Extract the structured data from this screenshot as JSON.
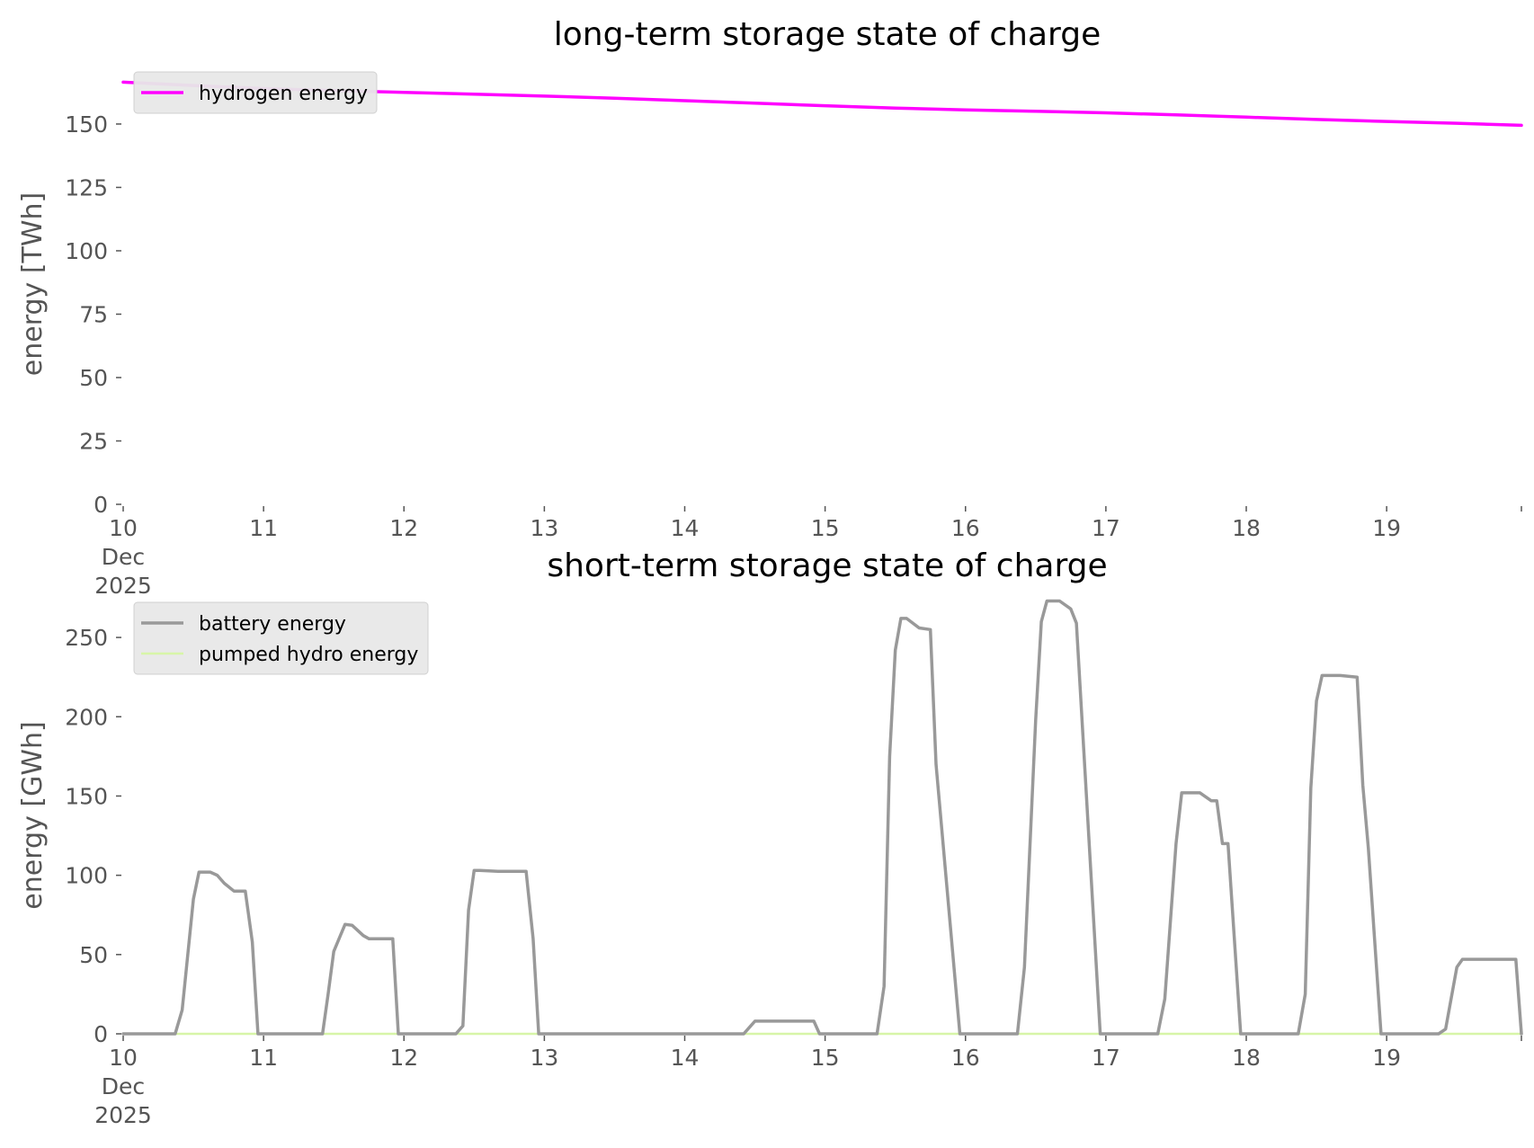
{
  "chart_data": [
    {
      "type": "line",
      "title": "long-term storage state of charge",
      "xlabel": "",
      "ylabel": "energy [TWh]",
      "ylim": [
        0,
        167
      ],
      "xlim": [
        10,
        19.96
      ],
      "yticks": [
        0,
        25,
        50,
        75,
        100,
        125,
        150
      ],
      "xticks": [
        {
          "value": 10,
          "lines": [
            "10",
            "Dec",
            "2025"
          ]
        },
        {
          "value": 11,
          "lines": [
            "11"
          ]
        },
        {
          "value": 12,
          "lines": [
            "12"
          ]
        },
        {
          "value": 13,
          "lines": [
            "13"
          ]
        },
        {
          "value": 14,
          "lines": [
            "14"
          ]
        },
        {
          "value": 15,
          "lines": [
            "15"
          ]
        },
        {
          "value": 16,
          "lines": [
            "16"
          ]
        },
        {
          "value": 17,
          "lines": [
            "17"
          ]
        },
        {
          "value": 18,
          "lines": [
            "18"
          ]
        },
        {
          "value": 19,
          "lines": [
            "19"
          ]
        },
        {
          "value": 19.96,
          "lines": []
        }
      ],
      "grid": false,
      "legend_position": "top-left",
      "series": [
        {
          "name": "hydrogen energy",
          "color": "#ff00ff",
          "width": 3.5,
          "x": [
            10,
            10.5,
            11,
            11.5,
            12,
            12.5,
            13,
            13.5,
            14,
            14.5,
            15,
            15.5,
            16,
            16.5,
            17,
            17.5,
            18,
            18.5,
            19,
            19.5,
            19.96
          ],
          "y": [
            166.5,
            165.2,
            164.0,
            163.2,
            162.5,
            161.8,
            161.0,
            160.2,
            159.2,
            158.2,
            157.2,
            156.3,
            155.6,
            155.0,
            154.4,
            153.6,
            152.7,
            151.8,
            151.0,
            150.3,
            149.5
          ]
        }
      ]
    },
    {
      "type": "line",
      "title": "short-term storage state of charge",
      "xlabel": "",
      "ylabel": "energy [GWh]",
      "ylim": [
        0,
        275
      ],
      "xlim": [
        10,
        19.96
      ],
      "yticks": [
        0,
        50,
        100,
        150,
        200,
        250
      ],
      "xticks": [
        {
          "value": 10,
          "lines": [
            "10",
            "Dec",
            "2025"
          ]
        },
        {
          "value": 11,
          "lines": [
            "11"
          ]
        },
        {
          "value": 12,
          "lines": [
            "12"
          ]
        },
        {
          "value": 13,
          "lines": [
            "13"
          ]
        },
        {
          "value": 14,
          "lines": [
            "14"
          ]
        },
        {
          "value": 15,
          "lines": [
            "15"
          ]
        },
        {
          "value": 16,
          "lines": [
            "16"
          ]
        },
        {
          "value": 17,
          "lines": [
            "17"
          ]
        },
        {
          "value": 18,
          "lines": [
            "18"
          ]
        },
        {
          "value": 19,
          "lines": [
            "19"
          ]
        },
        {
          "value": 19.96,
          "lines": []
        }
      ],
      "grid": false,
      "legend_position": "top-left",
      "series": [
        {
          "name": "battery energy",
          "color": "#999999",
          "width": 3.5,
          "x": [
            10,
            10.37,
            10.42,
            10.5,
            10.54,
            10.62,
            10.67,
            10.72,
            10.79,
            10.87,
            10.92,
            10.96,
            11.42,
            11.46,
            11.5,
            11.58,
            11.63,
            11.71,
            11.75,
            11.92,
            11.96,
            12.37,
            12.42,
            12.46,
            12.5,
            12.54,
            12.67,
            12.87,
            12.92,
            12.96,
            14.42,
            14.5,
            14.92,
            14.96,
            15.37,
            15.42,
            15.46,
            15.5,
            15.54,
            15.58,
            15.67,
            15.75,
            15.79,
            15.96,
            16.37,
            16.42,
            16.5,
            16.54,
            16.58,
            16.67,
            16.75,
            16.79,
            16.96,
            17.37,
            17.42,
            17.5,
            17.54,
            17.58,
            17.67,
            17.75,
            17.79,
            17.83,
            17.87,
            17.96,
            18.37,
            18.42,
            18.46,
            18.5,
            18.54,
            18.58,
            18.67,
            18.79,
            18.83,
            18.87,
            18.96,
            19.37,
            19.42,
            19.5,
            19.54,
            19.58,
            19.67,
            19.92,
            19.96
          ],
          "y": [
            0,
            0,
            15,
            85,
            102,
            102,
            100,
            95,
            90,
            90,
            58,
            0,
            0,
            25,
            52,
            69,
            68.5,
            62,
            60,
            60,
            0,
            0,
            5,
            78,
            103,
            103,
            102.5,
            102.5,
            60,
            0,
            0,
            8,
            8,
            0,
            0,
            30,
            175,
            242,
            262,
            262,
            256,
            255,
            170,
            0,
            0,
            42,
            198,
            260,
            273,
            273,
            268,
            259,
            0,
            0,
            22,
            120,
            152,
            152,
            152,
            147,
            147,
            120,
            120,
            0,
            0,
            25,
            155,
            210,
            226,
            226,
            226,
            225,
            157,
            117,
            0,
            0,
            3,
            42,
            47,
            47,
            47,
            47,
            0
          ]
        },
        {
          "name": "pumped hydro energy",
          "color": "#d7f5a8",
          "width": 2.5,
          "x": [
            10,
            19.96
          ],
          "y": [
            0,
            0
          ]
        }
      ]
    }
  ]
}
